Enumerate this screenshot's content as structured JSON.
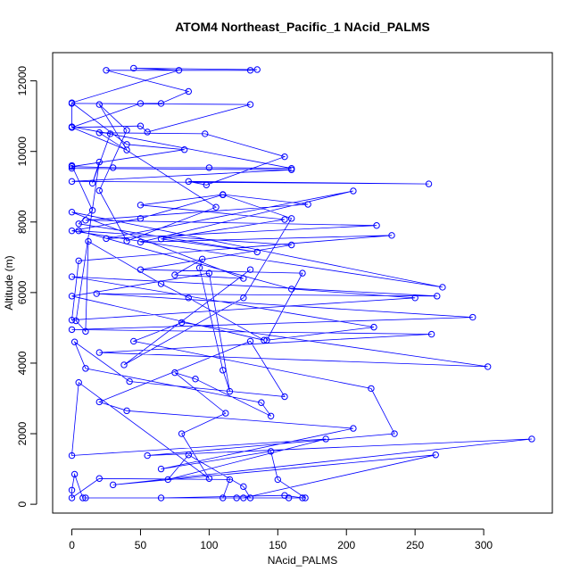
{
  "chart_data": {
    "type": "line",
    "title": "ATOM4 Northeast_Pacific_1 NAcid_PALMS",
    "xlabel": "NAcid_PALMS",
    "ylabel": "Altitude (m)",
    "xlim": [
      -14,
      350
    ],
    "ylim": [
      -250,
      12800
    ],
    "xticks": [
      0,
      50,
      100,
      150,
      200,
      250,
      300
    ],
    "yticks": [
      0,
      2000,
      4000,
      6000,
      8000,
      10000,
      12000
    ],
    "grid": false,
    "legend": "none",
    "marker": "open-circle",
    "color": "#0000ff",
    "series": [
      {
        "points": [
          [
            120,
            180
          ],
          [
            10,
            180
          ],
          [
            168,
            180
          ],
          [
            155,
            250
          ],
          [
            65,
            180
          ],
          [
            8,
            180
          ],
          [
            2,
            850
          ],
          [
            0,
            400
          ],
          [
            0,
            180
          ],
          [
            20,
            730
          ],
          [
            115,
            700
          ],
          [
            110,
            180
          ],
          [
            130,
            180
          ],
          [
            125,
            500
          ],
          [
            85,
            1400
          ],
          [
            70,
            700
          ],
          [
            185,
            1850
          ],
          [
            0,
            1380
          ],
          [
            5,
            3450
          ],
          [
            100,
            730
          ],
          [
            80,
            2000
          ],
          [
            112,
            2580
          ],
          [
            75,
            3730
          ],
          [
            90,
            3550
          ],
          [
            145,
            2500
          ],
          [
            138,
            2880
          ],
          [
            10,
            3850
          ],
          [
            2,
            4600
          ],
          [
            42,
            3480
          ],
          [
            155,
            3050
          ],
          [
            130,
            4620
          ],
          [
            20,
            2900
          ],
          [
            40,
            2650
          ],
          [
            205,
            2150
          ],
          [
            65,
            1000
          ],
          [
            145,
            1500
          ],
          [
            150,
            700
          ],
          [
            170,
            180
          ],
          [
            158,
            180
          ],
          [
            125,
            180
          ],
          [
            265,
            1400
          ],
          [
            30,
            550
          ],
          [
            335,
            1850
          ],
          [
            55,
            1380
          ],
          [
            235,
            2000
          ],
          [
            218,
            3280
          ],
          [
            45,
            4620
          ],
          [
            80,
            5150
          ],
          [
            303,
            3900
          ],
          [
            20,
            4300
          ],
          [
            262,
            4820
          ],
          [
            0,
            4950
          ],
          [
            292,
            5300
          ],
          [
            18,
            5970
          ],
          [
            266,
            5900
          ],
          [
            0,
            6450
          ],
          [
            220,
            5020
          ],
          [
            142,
            4650
          ],
          [
            168,
            6550
          ],
          [
            50,
            6650
          ],
          [
            160,
            7350
          ],
          [
            5,
            7750
          ],
          [
            160,
            6100
          ],
          [
            250,
            5850
          ],
          [
            0,
            5220
          ],
          [
            5,
            6900
          ],
          [
            233,
            7620
          ],
          [
            50,
            7430
          ],
          [
            205,
            8880
          ],
          [
            25,
            7530
          ],
          [
            222,
            7900
          ],
          [
            10,
            8050
          ],
          [
            172,
            8500
          ],
          [
            110,
            8780
          ],
          [
            50,
            8480
          ],
          [
            155,
            8070
          ],
          [
            65,
            7520
          ],
          [
            135,
            7150
          ],
          [
            5,
            7950
          ],
          [
            15,
            8330
          ],
          [
            0,
            9600
          ],
          [
            0,
            9520
          ],
          [
            160,
            9480
          ],
          [
            0,
            9150
          ],
          [
            260,
            9080
          ],
          [
            85,
            9150
          ],
          [
            98,
            9050
          ],
          [
            155,
            9850
          ],
          [
            97,
            10500
          ],
          [
            20,
            10530
          ],
          [
            105,
            8420
          ],
          [
            40,
            7460
          ],
          [
            20,
            8890
          ],
          [
            40,
            10600
          ],
          [
            20,
            11330
          ],
          [
            40,
            10040
          ],
          [
            0,
            10680
          ],
          [
            50,
            10720
          ],
          [
            55,
            10550
          ],
          [
            130,
            11330
          ],
          [
            0,
            11360
          ],
          [
            0,
            10680
          ],
          [
            50,
            11360
          ],
          [
            65,
            11360
          ],
          [
            85,
            11700
          ],
          [
            25,
            12300
          ],
          [
            130,
            12300
          ],
          [
            135,
            12320
          ],
          [
            45,
            12360
          ],
          [
            78,
            12300
          ],
          [
            0,
            11380
          ],
          [
            40,
            10200
          ],
          [
            82,
            10050
          ],
          [
            0,
            9570
          ],
          [
            30,
            9540
          ],
          [
            100,
            9540
          ],
          [
            160,
            9520
          ],
          [
            0,
            10700
          ],
          [
            28,
            10500
          ],
          [
            15,
            9100
          ],
          [
            20,
            9700
          ],
          [
            3,
            5200
          ],
          [
            10,
            4900
          ],
          [
            12,
            7450
          ],
          [
            65,
            6250
          ],
          [
            85,
            5850
          ],
          [
            140,
            4650
          ],
          [
            0,
            5900
          ],
          [
            100,
            6550
          ],
          [
            115,
            3200
          ],
          [
            110,
            3800
          ],
          [
            93,
            6700
          ],
          [
            95,
            6950
          ],
          [
            75,
            6500
          ],
          [
            125,
            6400
          ],
          [
            0,
            8280
          ],
          [
            270,
            6150
          ],
          [
            0,
            7750
          ],
          [
            50,
            8100
          ],
          [
            110,
            8770
          ],
          [
            160,
            8100
          ],
          [
            125,
            5850
          ],
          [
            38,
            3950
          ],
          [
            130,
            6650
          ]
        ]
      }
    ]
  }
}
